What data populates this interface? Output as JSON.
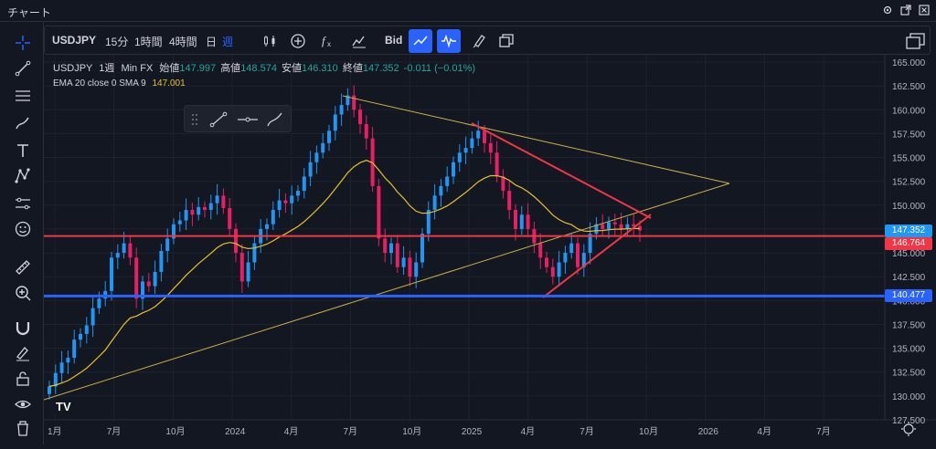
{
  "window": {
    "title": "チャート"
  },
  "toolbar": {
    "symbol": "USDJPY",
    "intervals": [
      "15分",
      "1時間",
      "4時間",
      "日",
      "週"
    ],
    "active_interval": "週",
    "bid_label": "Bid"
  },
  "legend": {
    "symbol": "USDJPY",
    "interval": "1週",
    "source": "Min FX",
    "open_label": "始値",
    "open": "147.997",
    "high_label": "高値",
    "high": "148.574",
    "low_label": "安値",
    "low": "146.310",
    "close_label": "終値",
    "close": "147.352",
    "change": "-0.011 (−0.01%)",
    "ema_label": "EMA 20 close 0 SMA 9",
    "ema_value": "147.001"
  },
  "price_axis": {
    "labels": [
      "165.000",
      "162.500",
      "160.000",
      "157.500",
      "155.000",
      "152.500",
      "150.000",
      "147.500",
      "145.000",
      "142.500",
      "140.000",
      "137.500",
      "135.000",
      "132.500",
      "130.000",
      "127.500"
    ],
    "tags": {
      "current": "147.352",
      "red_line": "146.764",
      "blue_line": "140.477"
    }
  },
  "time_axis": {
    "labels": [
      "1月",
      "7月",
      "10月",
      "2024",
      "4月",
      "7月",
      "10月",
      "2025",
      "4月",
      "7月",
      "10月",
      "2026",
      "4月",
      "7月"
    ]
  },
  "colors": {
    "bg": "#131722",
    "up": "#26a69a",
    "candle_up": "#2196f3",
    "candle_down": "#e91e63",
    "ema": "#e6c229",
    "red_line": "#f23645",
    "blue_line": "#2962ff",
    "trend": "#c8b04a",
    "accent": "#2962ff"
  },
  "chart_data": {
    "type": "candlestick",
    "y_range": [
      127.5,
      165.0
    ],
    "x_range": [
      "2023-01",
      "2026-08"
    ],
    "horizontal_lines": [
      146.764,
      140.477
    ],
    "last_close": 147.352,
    "ema_last": 147.001,
    "series_close": [
      131.0,
      132.4,
      133.5,
      134.0,
      135.9,
      136.5,
      137.4,
      139.2,
      140.2,
      141.0,
      144.5,
      145.0,
      146.0,
      144.5,
      140.2,
      142.0,
      141.5,
      143.0,
      145.2,
      146.5,
      148.0,
      148.4,
      149.5,
      149.0,
      149.8,
      149.5,
      150.2,
      151.0,
      149.7,
      147.5,
      145.0,
      142.0,
      144.0,
      146.0,
      147.5,
      148.0,
      149.5,
      150.5,
      150.2,
      151.0,
      151.5,
      153.0,
      154.5,
      155.5,
      156.5,
      157.8,
      159.5,
      160.5,
      161.5,
      160.0,
      158.5,
      157.0,
      152.0,
      146.5,
      145.0,
      146.0,
      143.5,
      144.5,
      142.5,
      144.0,
      147.0,
      149.5,
      151.0,
      152.0,
      153.0,
      154.5,
      155.5,
      156.0,
      157.0,
      157.8,
      156.5,
      155.5,
      153.0,
      151.5,
      149.5,
      147.5,
      149.0,
      147.5,
      146.0,
      144.5,
      143.5,
      142.5,
      144.0,
      145.0,
      146.0,
      143.5,
      145.0,
      147.0,
      148.0,
      147.5,
      148.2,
      148.0,
      147.5,
      148.0,
      147.8,
      147.352
    ]
  }
}
